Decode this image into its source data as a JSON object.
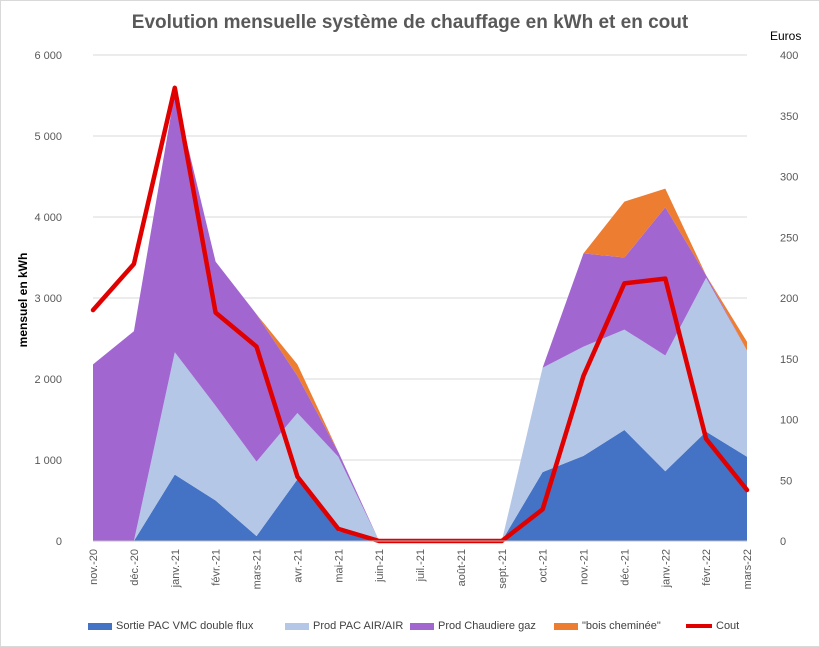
{
  "chart_data": {
    "type": "area",
    "title": "Evolution  mensuelle système de chauffage en kWh et en cout",
    "ylabel": "mensuel en kWh",
    "y2label": "Euros",
    "ylim": [
      0,
      6000
    ],
    "y2lim": [
      0,
      400
    ],
    "yticks": [
      "0",
      "1 000",
      "2 000",
      "3 000",
      "4 000",
      "5 000",
      "6 000"
    ],
    "y2ticks": [
      "0",
      "50",
      "100",
      "150",
      "200",
      "250",
      "300",
      "350",
      "400"
    ],
    "grid": true,
    "legend_position": "bottom",
    "categories": [
      "nov.-20",
      "déc.-20",
      "janv.-21",
      "févr.-21",
      "mars-21",
      "avr.-21",
      "mai-21",
      "juin-21",
      "juil.-21",
      "août-21",
      "sept.-21",
      "oct.-21",
      "nov.-21",
      "déc.-21",
      "janv.-22",
      "févr.-22",
      "mars-22"
    ],
    "series": [
      {
        "name": "Sortie PAC VMC double flux",
        "kind": "stacked-area",
        "color": "#4472c4",
        "values": [
          0,
          0,
          820,
          500,
          60,
          760,
          120,
          0,
          0,
          0,
          0,
          850,
          1050,
          1370,
          860,
          1350,
          1040
        ]
      },
      {
        "name": "Prod PAC AIR/AIR",
        "kind": "stacked-area",
        "color": "#b4c7e7",
        "values": [
          0,
          0,
          1510,
          1170,
          920,
          820,
          920,
          0,
          0,
          0,
          0,
          1290,
          1350,
          1240,
          1430,
          1900,
          1310
        ]
      },
      {
        "name": "Prod Chaudiere gaz",
        "kind": "stacked-area",
        "color": "#a266d0",
        "values": [
          2180,
          2590,
          3210,
          1780,
          1820,
          460,
          60,
          0,
          0,
          0,
          0,
          0,
          1150,
          890,
          1830,
          30,
          0
        ]
      },
      {
        "name": "\"bois cheminée\"",
        "kind": "stacked-area",
        "color": "#ed7d31",
        "values": [
          0,
          0,
          0,
          0,
          0,
          140,
          0,
          0,
          0,
          0,
          0,
          0,
          0,
          690,
          230,
          0,
          110
        ]
      },
      {
        "name": "Cout",
        "kind": "line",
        "axis": "right",
        "color": "#e00000",
        "values": [
          190,
          228,
          373,
          188,
          160,
          53,
          10,
          0,
          0,
          0,
          0,
          26,
          136,
          212,
          216,
          84,
          42
        ]
      }
    ]
  }
}
